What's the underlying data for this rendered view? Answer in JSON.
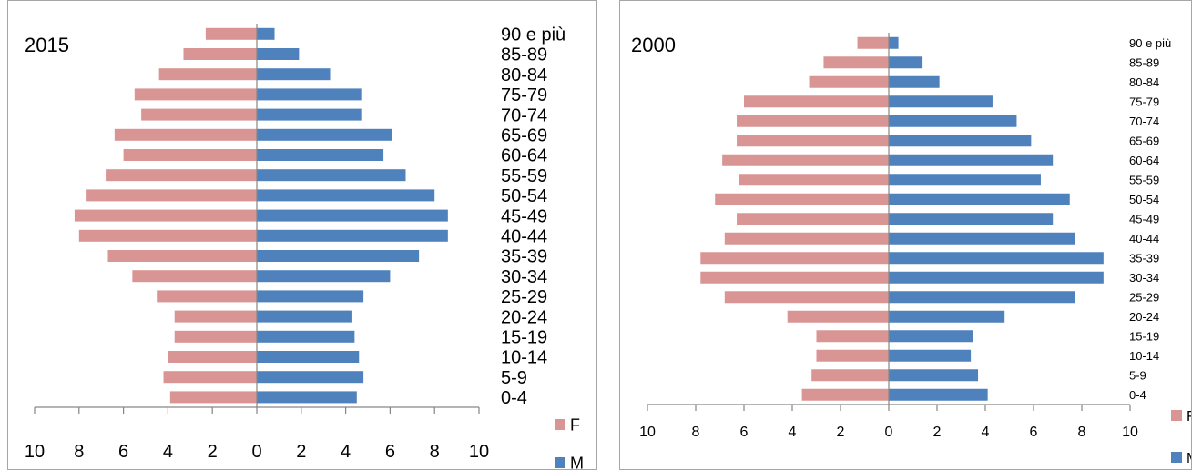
{
  "colors": {
    "female": "#d99594",
    "male": "#4f81bd",
    "axis": "#868686"
  },
  "chart_data": [
    {
      "type": "bar",
      "orientation": "horizontal-butterfly",
      "title": "2015",
      "categories": [
        "0-4",
        "5-9",
        "10-14",
        "15-19",
        "20-24",
        "25-29",
        "30-34",
        "35-39",
        "40-44",
        "45-49",
        "50-54",
        "55-59",
        "60-64",
        "65-69",
        "70-74",
        "75-79",
        "80-84",
        "85-89",
        "90 e più"
      ],
      "series": [
        {
          "name": "F",
          "values": [
            3.9,
            4.2,
            4.0,
            3.7,
            3.7,
            4.5,
            5.6,
            6.7,
            8.0,
            8.2,
            7.7,
            6.8,
            6.0,
            6.4,
            5.2,
            5.5,
            4.4,
            3.3,
            2.3
          ]
        },
        {
          "name": "M",
          "values": [
            4.5,
            4.8,
            4.6,
            4.4,
            4.3,
            4.8,
            6.0,
            7.3,
            8.6,
            8.6,
            8.0,
            6.7,
            5.7,
            6.1,
            4.7,
            4.7,
            3.3,
            1.9,
            0.8
          ]
        }
      ],
      "x_ticks": [
        "10",
        "8",
        "6",
        "4",
        "2",
        "0",
        "2",
        "4",
        "6",
        "8",
        "10"
      ],
      "xlim": [
        -10,
        10
      ],
      "legend_position": "bottom-right"
    },
    {
      "type": "bar",
      "orientation": "horizontal-butterfly",
      "title": "2000",
      "categories": [
        "0-4",
        "5-9",
        "10-14",
        "15-19",
        "20-24",
        "25-29",
        "30-34",
        "35-39",
        "40-44",
        "45-49",
        "50-54",
        "55-59",
        "60-64",
        "65-69",
        "70-74",
        "75-79",
        "80-84",
        "85-89",
        "90 e più"
      ],
      "series": [
        {
          "name": "F",
          "values": [
            3.6,
            3.2,
            3.0,
            3.0,
            4.2,
            6.8,
            7.8,
            7.8,
            6.8,
            6.3,
            7.2,
            6.2,
            6.9,
            6.3,
            6.3,
            6.0,
            3.3,
            2.7,
            1.3
          ]
        },
        {
          "name": "M",
          "values": [
            4.1,
            3.7,
            3.4,
            3.5,
            4.8,
            7.7,
            8.9,
            8.9,
            7.7,
            6.8,
            7.5,
            6.3,
            6.8,
            5.9,
            5.3,
            4.3,
            2.1,
            1.4,
            0.4
          ]
        }
      ],
      "x_ticks": [
        "10",
        "8",
        "6",
        "4",
        "2",
        "0",
        "2",
        "4",
        "6",
        "8",
        "10"
      ],
      "xlim": [
        -10,
        10
      ],
      "legend_position": "bottom-right"
    }
  ]
}
